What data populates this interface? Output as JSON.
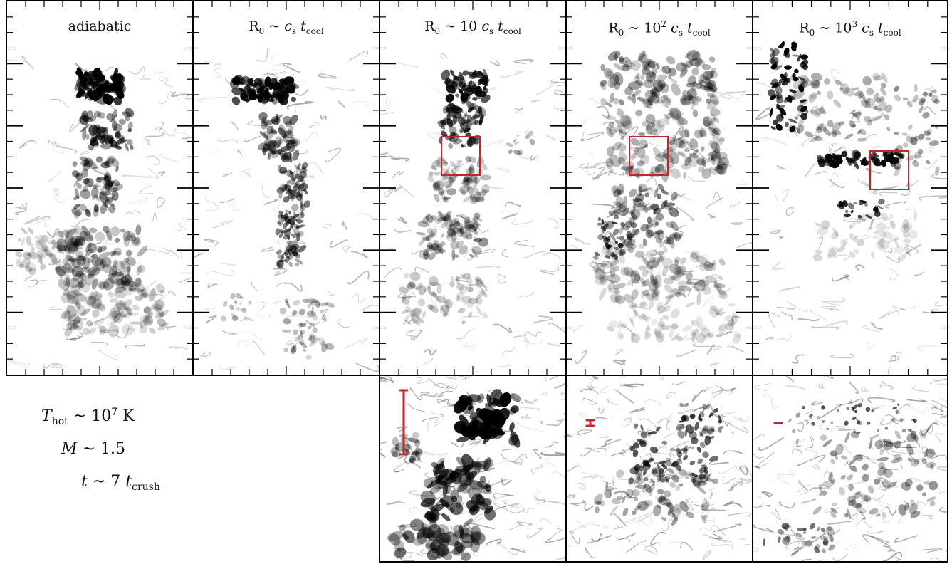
{
  "panels": [
    {
      "label": "adiabatic"
    },
    {
      "label_prefix": "R",
      "label_sub": "0",
      "label_rel": "~",
      "label_coef": "",
      "label_exp": ""
    },
    {
      "label_prefix": "R",
      "label_sub": "0",
      "label_rel": "~",
      "label_coef": "10",
      "label_exp": ""
    },
    {
      "label_prefix": "R",
      "label_sub": "0",
      "label_rel": "~",
      "label_coef": "10",
      "label_exp": "2"
    },
    {
      "label_prefix": "R",
      "label_sub": "0",
      "label_rel": "~",
      "label_coef": "10",
      "label_exp": "3"
    }
  ],
  "speed_symbol": "c",
  "speed_sub": "s",
  "time_symbol": "t",
  "time_sub": "cool",
  "params": {
    "temp_symbol": "T",
    "temp_sub": "hot",
    "temp_rel": "~",
    "temp_base": "10",
    "temp_exp": "7",
    "temp_unit": "K",
    "mach_symbol": "M",
    "mach_rel": "~",
    "mach_value": "1.5",
    "time_symbol": "t",
    "time_rel": "~",
    "time_value": "7",
    "time_unit_symbol": "t",
    "time_unit_sub": "crush"
  },
  "colors": {
    "highlight": "#c0272d",
    "frame": "#000000",
    "gas": "#000000"
  }
}
